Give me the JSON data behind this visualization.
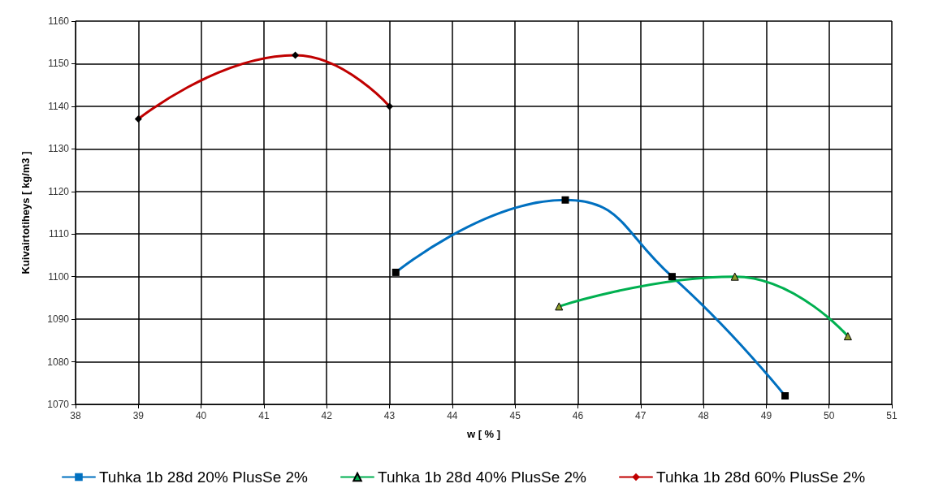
{
  "chart_data": {
    "type": "line",
    "xlabel": "w [ % ]",
    "ylabel": "Kuivairtotiheys [ kg/m3 ]",
    "xlim": [
      38,
      51
    ],
    "xticks": [
      38,
      39,
      40,
      41,
      42,
      43,
      44,
      45,
      46,
      47,
      48,
      49,
      50,
      51
    ],
    "ylim": [
      1070,
      1160
    ],
    "yticks": [
      1070,
      1080,
      1090,
      1100,
      1110,
      1120,
      1130,
      1140,
      1150,
      1160
    ],
    "grid": true,
    "legend": "bottom",
    "line_style": "solid",
    "series": [
      {
        "name": "Tuhka 1b 28d 20% PlusSe 2%",
        "color": "#0070c0",
        "marker": "square",
        "x": [
          43.1,
          45.8,
          47.5,
          49.3
        ],
        "values": [
          1101,
          1118,
          1100,
          1072
        ]
      },
      {
        "name": "Tuhka 1b 28d 40% PlusSe 2%",
        "color": "#00b050",
        "marker": "triangle",
        "x": [
          45.7,
          48.5,
          50.3
        ],
        "values": [
          1093,
          1100,
          1086
        ]
      },
      {
        "name": "Tuhka 1b 28d 60% PlusSe 2%",
        "color": "#c00000",
        "marker": "diamond",
        "x": [
          39,
          41.5,
          43
        ],
        "values": [
          1137,
          1152,
          1140
        ]
      }
    ]
  }
}
